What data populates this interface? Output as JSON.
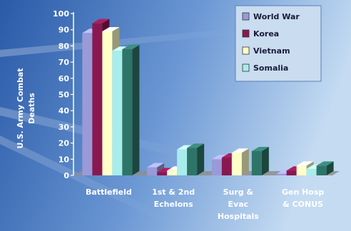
{
  "chart_data": {
    "type": "bar",
    "title": "",
    "xlabel": "",
    "ylabel_lines": [
      "U.S. Army Combat",
      "Deaths"
    ],
    "ylim": [
      0,
      100
    ],
    "yticks": [
      0,
      10,
      20,
      30,
      40,
      50,
      60,
      70,
      80,
      90,
      100
    ],
    "categories": [
      [
        "Battlefield"
      ],
      [
        "1st & 2nd",
        "Echelons"
      ],
      [
        "Surg &",
        "Evac",
        "Hospitals"
      ],
      [
        "Gen Hosp",
        "& CONUS"
      ]
    ],
    "series": [
      {
        "name": "World War",
        "color": "#9a9ad8",
        "values": [
          88,
          5,
          10,
          1
        ]
      },
      {
        "name": "Korea",
        "color": "#8a1850",
        "values": [
          94,
          2,
          11,
          3
        ]
      },
      {
        "name": "Vietnam",
        "color": "#ffffc8",
        "values": [
          89,
          3,
          14,
          6
        ]
      },
      {
        "name": "Somalia",
        "color": "#a8ecec",
        "values": [
          77,
          16,
          0,
          4
        ]
      },
      {
        "name": "",
        "color": "#2f7468",
        "values": [
          78,
          17,
          15,
          6
        ]
      }
    ],
    "legend_placement": "top-right",
    "colors": {
      "background_left": "#2a5aa8",
      "background_right": "#b8d2ee",
      "floor": "#8e8e8e",
      "text": "#ffffff"
    }
  }
}
